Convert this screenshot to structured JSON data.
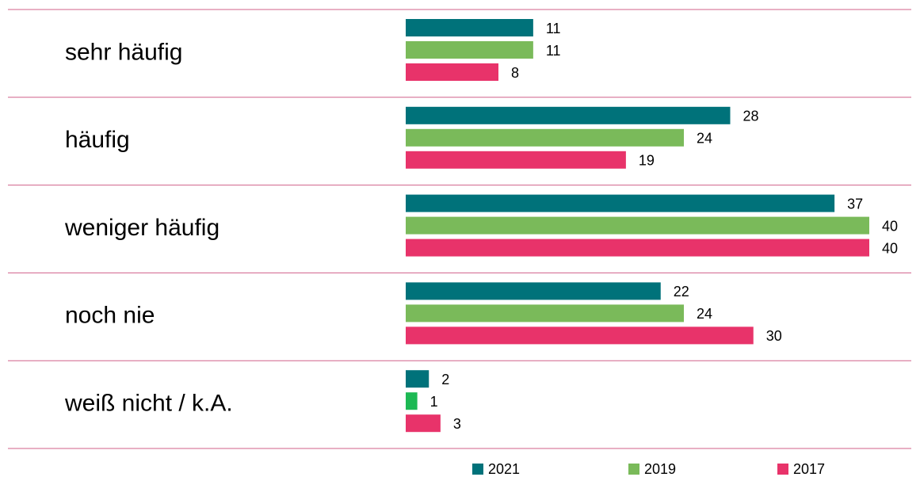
{
  "chart_data": {
    "type": "bar",
    "orientation": "horizontal",
    "categories": [
      "sehr häufig",
      "häufig",
      "weniger häufig",
      "noch nie",
      "weiß nicht / k.A."
    ],
    "series": [
      {
        "name": "2021",
        "color": "#00727a",
        "values": [
          11,
          28,
          37,
          22,
          2
        ]
      },
      {
        "name": "2019",
        "color": "#7aba5a",
        "values": [
          11,
          24,
          40,
          24,
          1
        ],
        "colors": [
          "#7aba5a",
          "#7aba5a",
          "#7aba5a",
          "#7aba5a",
          "#1db954"
        ]
      },
      {
        "name": "2017",
        "color": "#e8336a",
        "values": [
          8,
          19,
          40,
          30,
          3
        ]
      }
    ],
    "legend": "bottom"
  }
}
